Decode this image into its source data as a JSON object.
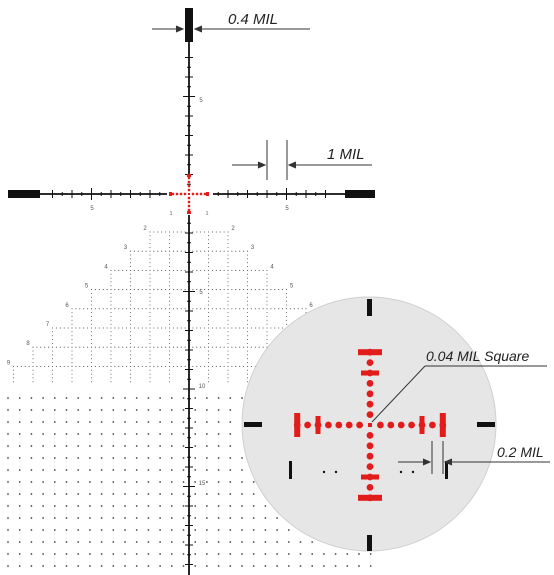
{
  "annotations": {
    "thick_post": "0.4 MIL",
    "hash_spacing": "1 MIL",
    "center_square": "0.04 MIL Square",
    "gap": "0.2 MIL"
  },
  "horizontal_axis": {
    "left_number": "5",
    "right_number": "5",
    "center_left": "1",
    "center_right": "1"
  },
  "vertical_axis": {
    "upper_number": "5",
    "lower_numbers": [
      "5",
      "10",
      "15"
    ]
  },
  "tree_rows": [
    {
      "row": 2,
      "left": "2",
      "right": "2"
    },
    {
      "row": 3,
      "left": "3",
      "right": "3"
    },
    {
      "row": 4,
      "left": "4",
      "right": "4"
    },
    {
      "row": 5,
      "left": "5",
      "right": "5"
    },
    {
      "row": 6,
      "left": "6",
      "right": "6"
    },
    {
      "row": 7,
      "left": "7",
      "right": ""
    },
    {
      "row": 8,
      "left": "8",
      "right": ""
    },
    {
      "row": 9,
      "left": "9",
      "right": ""
    }
  ],
  "colors": {
    "reticle": "#111111",
    "illumination": "#e21b1b",
    "inset_background": "#e6e6e6",
    "grid_dots": "#444444"
  }
}
